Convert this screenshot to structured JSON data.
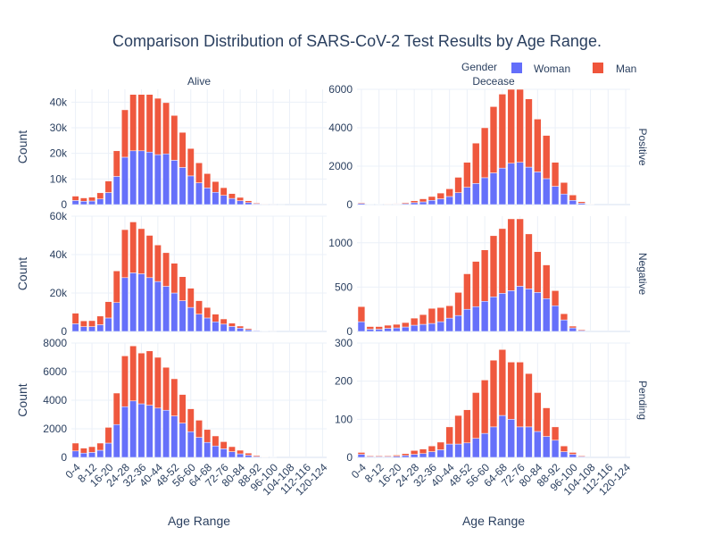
{
  "chart_data": {
    "type": "bar",
    "barmode": "stack",
    "title": "Comparison Distribution of SARS-CoV-2 Test Results by Age Range.",
    "xlabel": "Age Range",
    "ylabel": "Count",
    "columns": [
      "Alive",
      "Decease"
    ],
    "rows": [
      "Positive",
      "Negative",
      "Pending"
    ],
    "legend": {
      "title": "Gender",
      "position": "top-right",
      "items": [
        {
          "name": "Woman",
          "color": "#636efa"
        },
        {
          "name": "Man",
          "color": "#ef553b"
        }
      ]
    },
    "categories": [
      "0-4",
      "4-8",
      "8-12",
      "12-16",
      "16-20",
      "20-24",
      "24-28",
      "28-32",
      "32-36",
      "36-40",
      "40-44",
      "44-48",
      "48-52",
      "52-56",
      "56-60",
      "60-64",
      "64-68",
      "68-72",
      "72-76",
      "76-80",
      "80-84",
      "84-88",
      "88-92",
      "92-96",
      "96-100",
      "100-104",
      "104-108",
      "108-112",
      "112-116",
      "116-120",
      "120-124"
    ],
    "tick_labels": [
      "0-4",
      "8-12",
      "16-20",
      "24-28",
      "32-36",
      "40-44",
      "48-52",
      "56-60",
      "64-68",
      "72-76",
      "80-84",
      "88-92",
      "96-100",
      "104-108",
      "112-116",
      "120-124"
    ],
    "panels": [
      {
        "row": "Positive",
        "col": "Alive",
        "ylim": [
          0,
          45000
        ],
        "yticks": [
          0,
          10000,
          20000,
          30000,
          40000
        ],
        "ytick_labels": [
          "0",
          "10k",
          "20k",
          "30k",
          "40k"
        ],
        "series": [
          {
            "name": "Woman",
            "values": [
              1600,
              1300,
              1400,
              2200,
              4700,
              11000,
              18500,
              21000,
              21000,
              20500,
              19500,
              19800,
              17300,
              14500,
              11200,
              8500,
              6500,
              4800,
              3600,
              2400,
              1500,
              800,
              300,
              100,
              30,
              10,
              0,
              0,
              0,
              0,
              0
            ]
          },
          {
            "name": "Man",
            "values": [
              1700,
              1300,
              1500,
              2400,
              4500,
              10000,
              18500,
              22000,
              22000,
              22500,
              22000,
              20000,
              17500,
              13700,
              10700,
              7800,
              5600,
              4200,
              3000,
              1900,
              1300,
              700,
              300,
              100,
              30,
              10,
              0,
              0,
              0,
              0,
              0
            ]
          }
        ]
      },
      {
        "row": "Positive",
        "col": "Decease",
        "ylim": [
          0,
          6000
        ],
        "yticks": [
          0,
          2000,
          4000,
          6000
        ],
        "ytick_labels": [
          "0",
          "2000",
          "4000",
          "6000"
        ],
        "series": [
          {
            "name": "Woman",
            "values": [
              60,
              10,
              10,
              15,
              25,
              50,
              100,
              140,
              220,
              300,
              420,
              620,
              900,
              1100,
              1400,
              1650,
              1900,
              2150,
              2200,
              1950,
              1700,
              1350,
              950,
              550,
              220,
              70,
              20,
              0,
              0,
              0,
              0
            ]
          },
          {
            "name": "Man",
            "values": [
              40,
              10,
              10,
              15,
              25,
              50,
              100,
              160,
              200,
              300,
              400,
              800,
              1300,
              2100,
              2600,
              3450,
              3850,
              3850,
              3800,
              3550,
              2750,
              2250,
              1250,
              600,
              280,
              80,
              20,
              0,
              0,
              0,
              0
            ]
          }
        ]
      },
      {
        "row": "Negative",
        "col": "Alive",
        "ylim": [
          0,
          60000
        ],
        "yticks": [
          0,
          20000,
          40000,
          60000
        ],
        "ytick_labels": [
          "0",
          "20k",
          "40k",
          "60k"
        ],
        "series": [
          {
            "name": "Woman",
            "values": [
              4000,
              2500,
              2500,
              3500,
              7000,
              15000,
              28000,
              30500,
              30000,
              28000,
              26000,
              23500,
              20000,
              16000,
              12500,
              9000,
              7000,
              5000,
              3800,
              2600,
              1700,
              900,
              350,
              100,
              30,
              0,
              0,
              0,
              0,
              0,
              0
            ]
          },
          {
            "name": "Man",
            "values": [
              5500,
              3000,
              3100,
              4500,
              8500,
              16500,
              25000,
              26500,
              23500,
              22000,
              19000,
              17500,
              15500,
              12500,
              10000,
              7000,
              5500,
              4000,
              2700,
              1700,
              1100,
              600,
              250,
              100,
              30,
              0,
              0,
              0,
              0,
              0,
              0
            ]
          }
        ]
      },
      {
        "row": "Negative",
        "col": "Decease",
        "ylim": [
          0,
          1300
        ],
        "yticks": [
          0,
          500,
          1000
        ],
        "ytick_labels": [
          "0",
          "500",
          "1000"
        ],
        "series": [
          {
            "name": "Woman",
            "values": [
              110,
              25,
              25,
              35,
              40,
              50,
              70,
              80,
              90,
              110,
              150,
              180,
              250,
              280,
              340,
              390,
              430,
              460,
              510,
              480,
              440,
              370,
              290,
              130,
              40,
              10,
              0,
              0,
              0,
              0,
              0
            ]
          },
          {
            "name": "Man",
            "values": [
              170,
              30,
              30,
              35,
              40,
              50,
              80,
              110,
              170,
              160,
              140,
              260,
              400,
              510,
              580,
              690,
              730,
              810,
              760,
              620,
              460,
              380,
              170,
              70,
              20,
              10,
              0,
              0,
              0,
              0,
              0
            ]
          }
        ]
      },
      {
        "row": "Pending",
        "col": "Alive",
        "ylim": [
          0,
          8000
        ],
        "yticks": [
          0,
          2000,
          4000,
          6000,
          8000
        ],
        "ytick_labels": [
          "0",
          "2000",
          "4000",
          "6000",
          "8000"
        ],
        "series": [
          {
            "name": "Woman",
            "values": [
              450,
              300,
              350,
              500,
              1000,
              2300,
              3550,
              3950,
              3750,
              3650,
              3450,
              3300,
              2900,
              2400,
              1800,
              1400,
              1050,
              800,
              600,
              400,
              250,
              150,
              60,
              20,
              10,
              0,
              0,
              0,
              0,
              0,
              0
            ]
          },
          {
            "name": "Man",
            "values": [
              550,
              350,
              400,
              500,
              1100,
              2200,
              3550,
              3850,
              3550,
              3800,
              3550,
              3000,
              2600,
              2000,
              1600,
              1200,
              900,
              700,
              500,
              350,
              250,
              150,
              70,
              30,
              10,
              0,
              0,
              0,
              0,
              0,
              0
            ]
          }
        ]
      },
      {
        "row": "Pending",
        "col": "Decease",
        "ylim": [
          0,
          300
        ],
        "yticks": [
          0,
          100,
          200,
          300
        ],
        "ytick_labels": [
          "0",
          "100",
          "200",
          "300"
        ],
        "series": [
          {
            "name": "Woman",
            "values": [
              8,
              2,
              2,
              2,
              3,
              5,
              8,
              10,
              15,
              20,
              35,
              35,
              38,
              50,
              63,
              80,
              110,
              100,
              80,
              80,
              68,
              55,
              45,
              15,
              8,
              2,
              0,
              0,
              0,
              0,
              0
            ]
          },
          {
            "name": "Man",
            "values": [
              5,
              2,
              2,
              2,
              3,
              5,
              10,
              12,
              15,
              20,
              45,
              75,
              87,
              120,
              140,
              175,
              173,
              150,
              170,
              140,
              102,
              75,
              35,
              15,
              5,
              2,
              0,
              0,
              0,
              0,
              0
            ]
          }
        ]
      }
    ]
  }
}
